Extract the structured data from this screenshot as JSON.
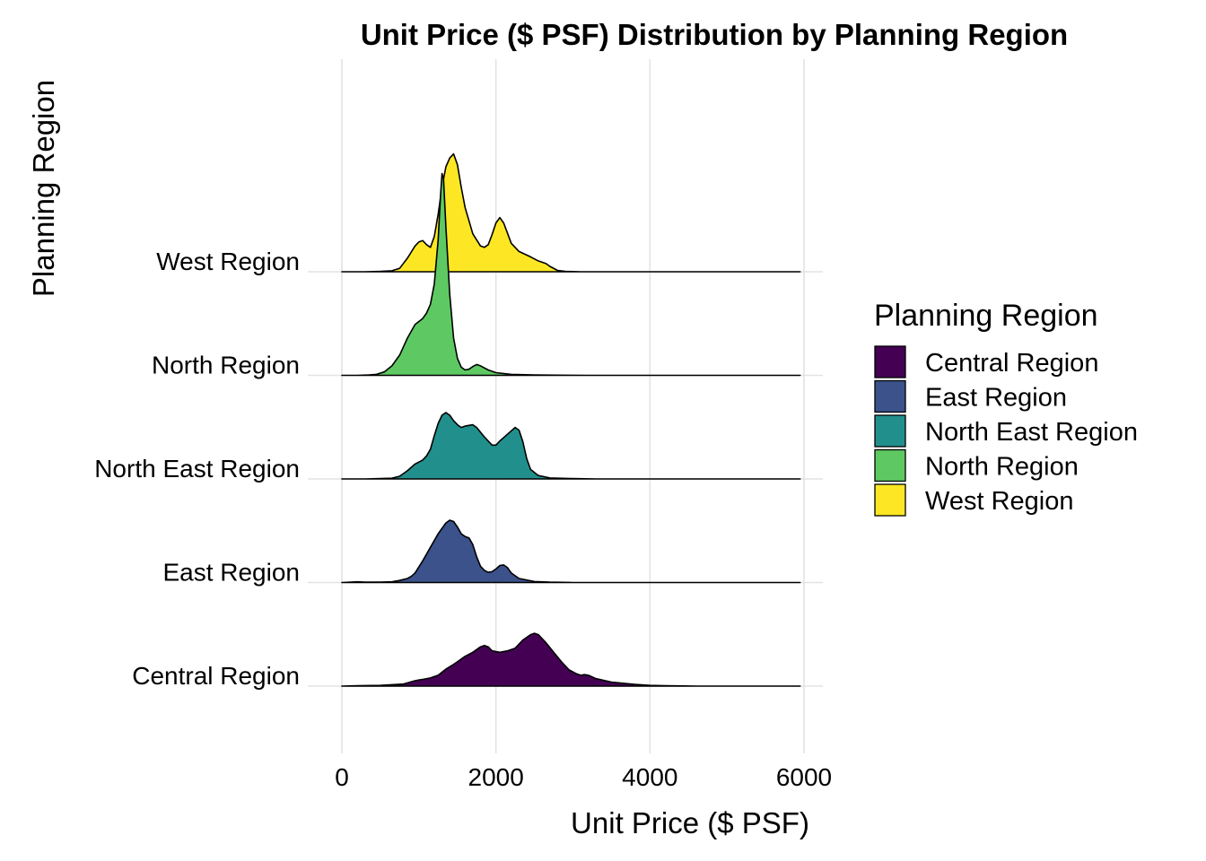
{
  "chart_data": {
    "type": "ridgeline",
    "title": "Unit Price ($ PSF) Distribution by Planning Region",
    "xlabel": "Unit Price ($ PSF)",
    "ylabel": "Planning Region",
    "xlim": [
      0,
      5950
    ],
    "xticks": [
      0,
      2000,
      4000,
      6000
    ],
    "grid": true,
    "legend": {
      "title": "Planning Region",
      "placement": "right"
    },
    "series": [
      {
        "name": "Central Region",
        "color": "#440154",
        "points": [
          [
            0,
            0
          ],
          [
            200,
            0.005
          ],
          [
            500,
            0.01
          ],
          [
            800,
            0.03
          ],
          [
            950,
            0.08
          ],
          [
            1000,
            0.09
          ],
          [
            1050,
            0.1
          ],
          [
            1150,
            0.12
          ],
          [
            1250,
            0.16
          ],
          [
            1350,
            0.25
          ],
          [
            1450,
            0.32
          ],
          [
            1600,
            0.44
          ],
          [
            1700,
            0.5
          ],
          [
            1800,
            0.58
          ],
          [
            1850,
            0.6
          ],
          [
            1900,
            0.58
          ],
          [
            1950,
            0.52
          ],
          [
            2050,
            0.5
          ],
          [
            2150,
            0.52
          ],
          [
            2250,
            0.56
          ],
          [
            2350,
            0.68
          ],
          [
            2450,
            0.76
          ],
          [
            2500,
            0.78
          ],
          [
            2550,
            0.76
          ],
          [
            2650,
            0.64
          ],
          [
            2750,
            0.5
          ],
          [
            2850,
            0.36
          ],
          [
            2950,
            0.24
          ],
          [
            3050,
            0.18
          ],
          [
            3100,
            0.16
          ],
          [
            3150,
            0.17
          ],
          [
            3200,
            0.16
          ],
          [
            3300,
            0.11
          ],
          [
            3500,
            0.06
          ],
          [
            3800,
            0.025
          ],
          [
            4000,
            0.01
          ],
          [
            4200,
            0.005
          ],
          [
            4600,
            0
          ],
          [
            5950,
            0
          ]
        ]
      },
      {
        "name": "East Region",
        "color": "#3b528b",
        "points": [
          [
            0,
            0
          ],
          [
            200,
            0.01
          ],
          [
            300,
            0.005
          ],
          [
            500,
            0.005
          ],
          [
            650,
            0.01
          ],
          [
            750,
            0.03
          ],
          [
            850,
            0.06
          ],
          [
            900,
            0.09
          ],
          [
            950,
            0.14
          ],
          [
            1050,
            0.32
          ],
          [
            1150,
            0.52
          ],
          [
            1250,
            0.72
          ],
          [
            1350,
            0.88
          ],
          [
            1400,
            0.92
          ],
          [
            1450,
            0.9
          ],
          [
            1500,
            0.82
          ],
          [
            1550,
            0.72
          ],
          [
            1600,
            0.68
          ],
          [
            1650,
            0.66
          ],
          [
            1700,
            0.56
          ],
          [
            1750,
            0.38
          ],
          [
            1800,
            0.24
          ],
          [
            1850,
            0.18
          ],
          [
            1900,
            0.15
          ],
          [
            1950,
            0.16
          ],
          [
            2000,
            0.2
          ],
          [
            2050,
            0.25
          ],
          [
            2100,
            0.26
          ],
          [
            2150,
            0.22
          ],
          [
            2200,
            0.14
          ],
          [
            2300,
            0.06
          ],
          [
            2500,
            0.015
          ],
          [
            2700,
            0.005
          ],
          [
            3000,
            0
          ],
          [
            5950,
            0
          ]
        ]
      },
      {
        "name": "North East Region",
        "color": "#21908c",
        "points": [
          [
            0,
            0
          ],
          [
            300,
            0
          ],
          [
            500,
            0.005
          ],
          [
            650,
            0.01
          ],
          [
            750,
            0.04
          ],
          [
            850,
            0.12
          ],
          [
            950,
            0.22
          ],
          [
            1050,
            0.28
          ],
          [
            1100,
            0.34
          ],
          [
            1150,
            0.44
          ],
          [
            1200,
            0.64
          ],
          [
            1250,
            0.82
          ],
          [
            1300,
            0.94
          ],
          [
            1350,
            0.98
          ],
          [
            1400,
            0.94
          ],
          [
            1450,
            0.86
          ],
          [
            1500,
            0.8
          ],
          [
            1550,
            0.76
          ],
          [
            1600,
            0.78
          ],
          [
            1700,
            0.8
          ],
          [
            1750,
            0.76
          ],
          [
            1850,
            0.62
          ],
          [
            1950,
            0.5
          ],
          [
            2000,
            0.5
          ],
          [
            2050,
            0.56
          ],
          [
            2150,
            0.66
          ],
          [
            2250,
            0.76
          ],
          [
            2300,
            0.72
          ],
          [
            2350,
            0.55
          ],
          [
            2400,
            0.3
          ],
          [
            2450,
            0.14
          ],
          [
            2550,
            0.05
          ],
          [
            2700,
            0.015
          ],
          [
            3000,
            0.005
          ],
          [
            3300,
            0
          ],
          [
            5950,
            0
          ]
        ]
      },
      {
        "name": "North Region",
        "color": "#5ec962",
        "points": [
          [
            0,
            0
          ],
          [
            200,
            0
          ],
          [
            350,
            0.005
          ],
          [
            450,
            0.015
          ],
          [
            550,
            0.05
          ],
          [
            650,
            0.14
          ],
          [
            750,
            0.3
          ],
          [
            850,
            0.55
          ],
          [
            950,
            0.75
          ],
          [
            1050,
            0.84
          ],
          [
            1100,
            0.92
          ],
          [
            1150,
            1.05
          ],
          [
            1200,
            1.35
          ],
          [
            1250,
            2.0
          ],
          [
            1280,
            2.65
          ],
          [
            1300,
            2.98
          ],
          [
            1320,
            2.9
          ],
          [
            1350,
            2.2
          ],
          [
            1400,
            1.2
          ],
          [
            1450,
            0.55
          ],
          [
            1500,
            0.25
          ],
          [
            1550,
            0.12
          ],
          [
            1600,
            0.08
          ],
          [
            1650,
            0.09
          ],
          [
            1700,
            0.13
          ],
          [
            1750,
            0.16
          ],
          [
            1800,
            0.14
          ],
          [
            1900,
            0.08
          ],
          [
            2000,
            0.04
          ],
          [
            2200,
            0.015
          ],
          [
            2500,
            0.005
          ],
          [
            2800,
            0.002
          ],
          [
            3200,
            0
          ],
          [
            5950,
            0
          ]
        ]
      },
      {
        "name": "West Region",
        "color": "#fde725",
        "points": [
          [
            0,
            0
          ],
          [
            300,
            0
          ],
          [
            500,
            0.005
          ],
          [
            650,
            0.015
          ],
          [
            750,
            0.05
          ],
          [
            850,
            0.2
          ],
          [
            950,
            0.38
          ],
          [
            1000,
            0.44
          ],
          [
            1050,
            0.46
          ],
          [
            1100,
            0.4
          ],
          [
            1150,
            0.36
          ],
          [
            1200,
            0.52
          ],
          [
            1250,
            0.85
          ],
          [
            1300,
            1.25
          ],
          [
            1350,
            1.55
          ],
          [
            1400,
            1.68
          ],
          [
            1450,
            1.74
          ],
          [
            1500,
            1.58
          ],
          [
            1550,
            1.25
          ],
          [
            1600,
            0.95
          ],
          [
            1700,
            0.56
          ],
          [
            1800,
            0.38
          ],
          [
            1850,
            0.36
          ],
          [
            1900,
            0.4
          ],
          [
            1950,
            0.55
          ],
          [
            2000,
            0.72
          ],
          [
            2050,
            0.8
          ],
          [
            2100,
            0.72
          ],
          [
            2200,
            0.42
          ],
          [
            2300,
            0.3
          ],
          [
            2450,
            0.22
          ],
          [
            2550,
            0.16
          ],
          [
            2650,
            0.12
          ],
          [
            2700,
            0.08
          ],
          [
            2800,
            0.02
          ],
          [
            2900,
            0.005
          ],
          [
            3100,
            0
          ],
          [
            5950,
            0
          ]
        ]
      }
    ]
  }
}
